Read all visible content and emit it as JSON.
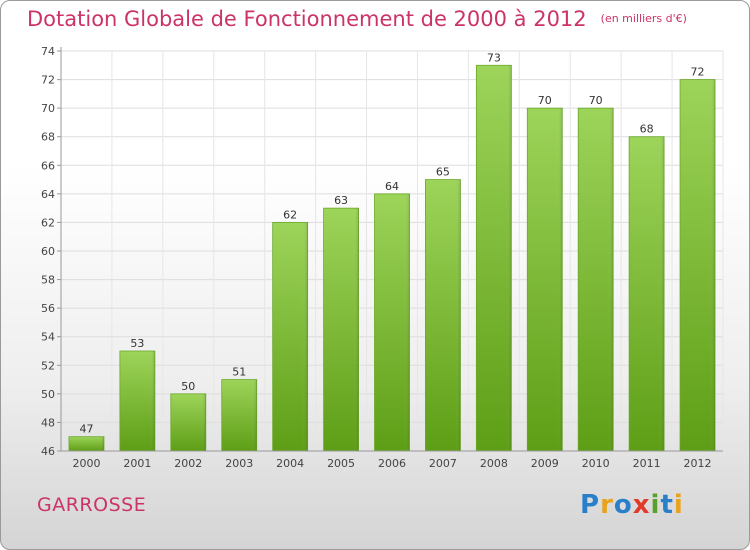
{
  "title": "Dotation Globale de Fonctionnement de 2000 à 2012",
  "unit_note": "(en milliers d'€)",
  "commune": "GARROSSE",
  "logo": {
    "letters": [
      "P",
      "r",
      "o",
      "x",
      "i",
      "t",
      "i"
    ],
    "colors": [
      "#2a7fc9",
      "#e8a21c",
      "#2a7fc9",
      "#e23a2a",
      "#5aa02c",
      "#2a7fc9",
      "#e8a21c"
    ]
  },
  "chart_data": {
    "type": "bar",
    "categories": [
      "2000",
      "2001",
      "2002",
      "2003",
      "2004",
      "2005",
      "2006",
      "2007",
      "2008",
      "2009",
      "2010",
      "2011",
      "2012"
    ],
    "values": [
      47,
      53,
      50,
      51,
      62,
      63,
      64,
      65,
      73,
      70,
      70,
      68,
      72
    ],
    "ylim": [
      46,
      74
    ],
    "yticks": [
      46,
      48,
      50,
      52,
      54,
      56,
      58,
      60,
      62,
      64,
      66,
      68,
      70,
      72,
      74
    ],
    "grid": true,
    "bar_color": "#7fc030"
  }
}
